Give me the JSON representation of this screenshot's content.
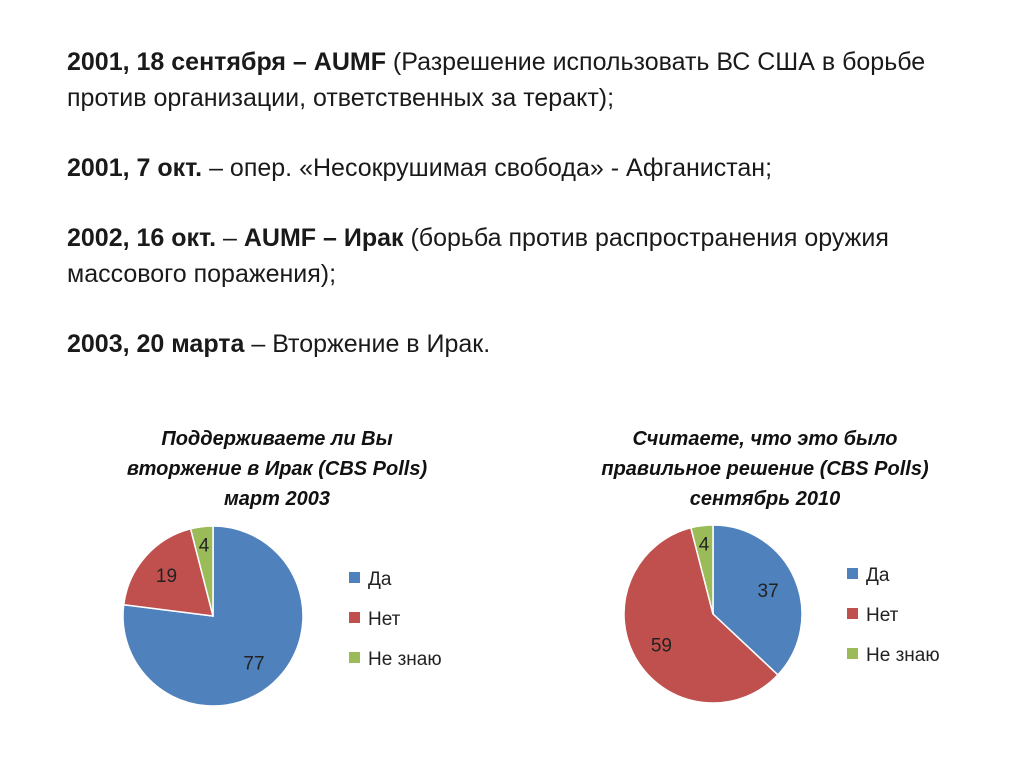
{
  "timeline": [
    {
      "bold": "2001, 18 сентября – AUMF",
      "text": " (Разрешение использовать ВС США в борьбе против организации, ответственных за теракт);"
    },
    {
      "bold": "2001, 7 окт.",
      "text": " – опер. «Несокрушимая свобода» - Афганистан;"
    },
    {
      "bold_a": "2002, 16 окт.",
      "mid": " – ",
      "bold_b": "AUMF – Ирак",
      "text": " (борьба против распространения оружия массового поражения);"
    },
    {
      "bold": "2003, 20 марта",
      "text": " – Вторжение в Ирак."
    }
  ],
  "colors": {
    "yes": "#4f81bd",
    "no": "#c0504d",
    "dont_know": "#9bbb59"
  },
  "chart_data": [
    {
      "type": "pie",
      "title_lines": [
        "Поддерживаете ли Вы",
        "вторжение в Ирак (CBS Polls)",
        "март 2003"
      ],
      "categories": [
        "Да",
        "Нет",
        "Не знаю"
      ],
      "values": [
        77,
        19,
        4
      ],
      "legend_position": "right"
    },
    {
      "type": "pie",
      "title_lines": [
        "Считаете, что это было",
        "правильное решение (CBS Polls)",
        "сентябрь 2010"
      ],
      "categories": [
        "Да",
        "Нет",
        "Не знаю"
      ],
      "values": [
        37,
        59,
        4
      ],
      "legend_position": "right"
    }
  ]
}
